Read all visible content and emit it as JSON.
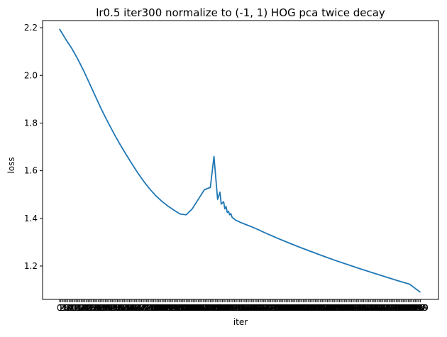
{
  "chart_data": {
    "type": "line",
    "title": "lr0.5 iter300 normalize to (-1, 1) HOG pca twice decay",
    "xlabel": "iter",
    "ylabel": "loss",
    "xlim": [
      -14,
      314
    ],
    "ylim": [
      1.06,
      2.23
    ],
    "yticks": [
      1.2,
      1.4,
      1.6,
      1.8,
      2.0,
      2.2
    ],
    "ytick_labels": [
      "1.2",
      "1.4",
      "1.6",
      "1.8",
      "2.0",
      "2.2"
    ],
    "xtick_first_label": "0",
    "xtick_count": 300,
    "grid": false,
    "legend": false,
    "series": [
      {
        "color": "#1f77b4",
        "x": [
          0,
          3,
          6,
          10,
          15,
          20,
          25,
          30,
          35,
          40,
          45,
          50,
          55,
          60,
          65,
          70,
          75,
          80,
          85,
          90,
          95,
          100,
          105,
          110,
          115,
          120,
          125,
          128,
          131,
          133,
          134,
          136,
          137,
          138,
          139,
          140,
          141,
          142,
          143,
          144,
          145,
          146,
          148,
          150,
          155,
          160,
          165,
          170,
          180,
          190,
          200,
          210,
          220,
          230,
          240,
          250,
          260,
          270,
          280,
          290,
          299
        ],
        "values": [
          2.195,
          2.17,
          2.145,
          2.115,
          2.07,
          2.02,
          1.965,
          1.91,
          1.855,
          1.805,
          1.757,
          1.712,
          1.67,
          1.629,
          1.59,
          1.554,
          1.522,
          1.494,
          1.471,
          1.451,
          1.434,
          1.418,
          1.415,
          1.44,
          1.48,
          1.52,
          1.53,
          1.66,
          1.48,
          1.51,
          1.46,
          1.47,
          1.44,
          1.45,
          1.425,
          1.43,
          1.415,
          1.42,
          1.405,
          1.4,
          1.397,
          1.392,
          1.388,
          1.383,
          1.373,
          1.363,
          1.352,
          1.34,
          1.318,
          1.297,
          1.277,
          1.258,
          1.239,
          1.221,
          1.204,
          1.187,
          1.171,
          1.155,
          1.139,
          1.124,
          1.09
        ]
      }
    ]
  }
}
